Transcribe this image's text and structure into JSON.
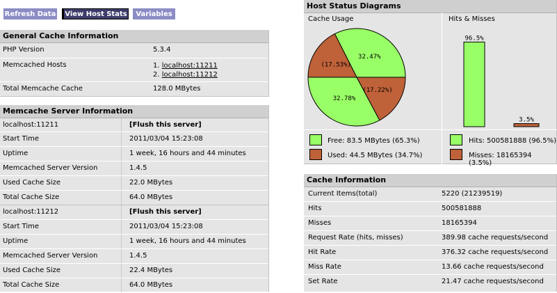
{
  "toolbar": {
    "refresh_label": "Refresh Data",
    "hoststats_label": "View Host Stats",
    "variables_label": "Variables"
  },
  "general": {
    "title": "General Cache Information",
    "php_label": "PHP Version",
    "php_value": "5.3.4",
    "hosts_label": "Memcached Hosts",
    "hosts": [
      "localhost:11211",
      "localhost:11212"
    ],
    "host_prefixes": [
      "1. ",
      "2. "
    ],
    "total_label": "Total Memcache Cache",
    "total_value": "128.0 MBytes"
  },
  "servers": {
    "title": "Memcache Server Information",
    "flush_label": "[Flush this server]",
    "list": [
      {
        "name": "localhost:11211",
        "start_time_label": "Start Time",
        "start_time": "2011/03/04 15:23:08",
        "uptime_label": "Uptime",
        "uptime": "1 week, 16 hours and 44 minutes",
        "version_label": "Memcached Server Version",
        "version": "1.4.5",
        "used_label": "Used Cache Size",
        "used": "22.0 MBytes",
        "total_label": "Total Cache Size",
        "total": "64.0 MBytes"
      },
      {
        "name": "localhost:11212",
        "start_time_label": "Start Time",
        "start_time": "2011/03/04 15:23:08",
        "uptime_label": "Uptime",
        "uptime": "1 week, 16 hours and 44 minutes",
        "version_label": "Memcached Server Version",
        "version": "1.4.5",
        "used_label": "Used Cache Size",
        "used": "22.4 MBytes",
        "total_label": "Total Cache Size",
        "total": "64.0 MBytes"
      }
    ]
  },
  "diagrams": {
    "title": "Host Status Diagrams",
    "cache_usage_label": "Cache Usage",
    "hits_misses_label": "Hits & Misses",
    "free_legend": "Free: 83.5 MBytes (65.3%)",
    "used_legend": "Used: 44.5 MBytes (34.7%)",
    "hits_legend": "Hits: 500581888 (96.5%)",
    "misses_legend": "Misses: 18165394 (3.5%)",
    "colors": {
      "free": "#99ff66",
      "used": "#bf6139",
      "panel": "#e5e5e5"
    }
  },
  "chart_data": [
    {
      "type": "pie",
      "title": "Cache Usage",
      "slices": [
        {
          "label": "32.47%",
          "value": 32.47,
          "color": "#99ff66"
        },
        {
          "label": "(17.53%)",
          "value": 17.53,
          "color": "#bf6139"
        },
        {
          "label": "32.78%",
          "value": 32.78,
          "color": "#99ff66"
        },
        {
          "label": "(17.22%)",
          "value": 17.22,
          "color": "#bf6139"
        }
      ]
    },
    {
      "type": "bar",
      "title": "Hits & Misses",
      "categories": [
        "Hits",
        "Misses"
      ],
      "values": [
        96.5,
        3.5
      ],
      "labels": [
        "96.5%",
        "3.5%"
      ],
      "colors": [
        "#99ff66",
        "#bf6139"
      ]
    }
  ],
  "cache_info": {
    "title": "Cache Information",
    "rows": [
      {
        "label": "Current Items(total)",
        "value": "5220 (21239519)"
      },
      {
        "label": "Hits",
        "value": "500581888"
      },
      {
        "label": "Misses",
        "value": "18165394"
      },
      {
        "label": "Request Rate (hits, misses)",
        "value": "389.98 cache requests/second"
      },
      {
        "label": "Hit Rate",
        "value": "376.32 cache requests/second"
      },
      {
        "label": "Miss Rate",
        "value": "13.66 cache requests/second"
      },
      {
        "label": "Set Rate",
        "value": "21.47 cache requests/second"
      }
    ]
  }
}
